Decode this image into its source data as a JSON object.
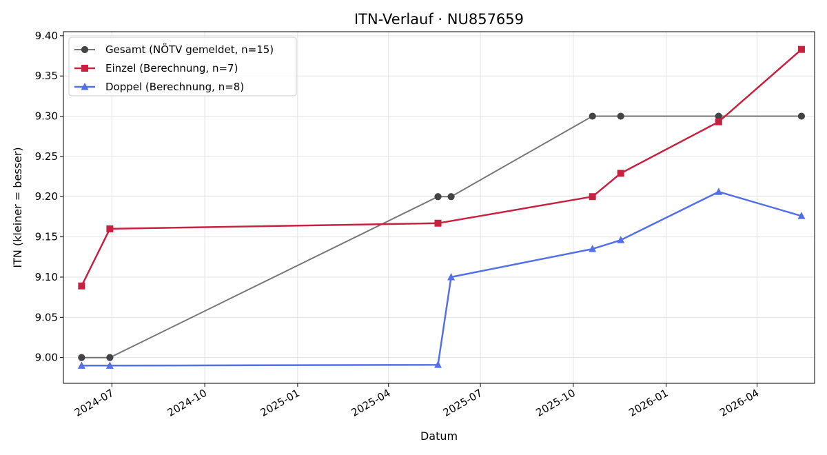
{
  "chart_data": {
    "type": "line",
    "title": "ITN-Verlauf · NU857659",
    "xlabel": "Datum",
    "ylabel": "ITN  (kleiner = besser)",
    "x_axis": "date",
    "xlim": [
      "2024-05-14",
      "2026-05-28"
    ],
    "ylim": [
      8.968,
      9.405
    ],
    "x_ticks": [
      {
        "date": "2024-07-01",
        "label": "2024-07"
      },
      {
        "date": "2024-10-01",
        "label": "2024-10"
      },
      {
        "date": "2025-01-01",
        "label": "2025-01"
      },
      {
        "date": "2025-04-01",
        "label": "2025-04"
      },
      {
        "date": "2025-07-01",
        "label": "2025-07"
      },
      {
        "date": "2025-10-01",
        "label": "2025-10"
      },
      {
        "date": "2026-01-01",
        "label": "2026-01"
      },
      {
        "date": "2026-04-01",
        "label": "2026-04"
      }
    ],
    "y_ticks": [
      "9.00",
      "9.05",
      "9.10",
      "9.15",
      "9.20",
      "9.25",
      "9.30",
      "9.35",
      "9.40"
    ],
    "grid": true,
    "legend_position": "top-left",
    "series": [
      {
        "name": "Gesamt (NÖTV gemeldet, n=15)",
        "color": "#555555",
        "marker": "circle",
        "points": [
          {
            "x": "2024-06-01",
            "y": 9.0
          },
          {
            "x": "2024-06-29",
            "y": 9.0
          },
          {
            "x": "2025-05-20",
            "y": 9.2
          },
          {
            "x": "2025-06-02",
            "y": 9.2
          },
          {
            "x": "2025-10-20",
            "y": 9.3
          },
          {
            "x": "2025-11-17",
            "y": 9.3
          },
          {
            "x": "2026-02-22",
            "y": 9.3
          },
          {
            "x": "2026-05-15",
            "y": 9.3
          }
        ]
      },
      {
        "name": "Einzel (Berechnung, n=7)",
        "color": "#c8203f",
        "marker": "square",
        "points": [
          {
            "x": "2024-06-01",
            "y": 9.089
          },
          {
            "x": "2024-06-29",
            "y": 9.16
          },
          {
            "x": "2025-05-20",
            "y": 9.167
          },
          {
            "x": "2025-10-20",
            "y": 9.2
          },
          {
            "x": "2025-11-17",
            "y": 9.229
          },
          {
            "x": "2026-02-22",
            "y": 9.293
          },
          {
            "x": "2026-05-15",
            "y": 9.383
          }
        ]
      },
      {
        "name": "Doppel (Berechnung, n=8)",
        "color": "#5470e8",
        "marker": "triangle",
        "points": [
          {
            "x": "2024-06-01",
            "y": 8.99
          },
          {
            "x": "2024-06-29",
            "y": 8.99
          },
          {
            "x": "2025-05-20",
            "y": 8.991
          },
          {
            "x": "2025-06-02",
            "y": 9.1
          },
          {
            "x": "2025-10-20",
            "y": 9.135
          },
          {
            "x": "2025-11-17",
            "y": 9.146
          },
          {
            "x": "2026-02-22",
            "y": 9.206
          },
          {
            "x": "2026-05-15",
            "y": 9.176
          }
        ]
      }
    ]
  }
}
